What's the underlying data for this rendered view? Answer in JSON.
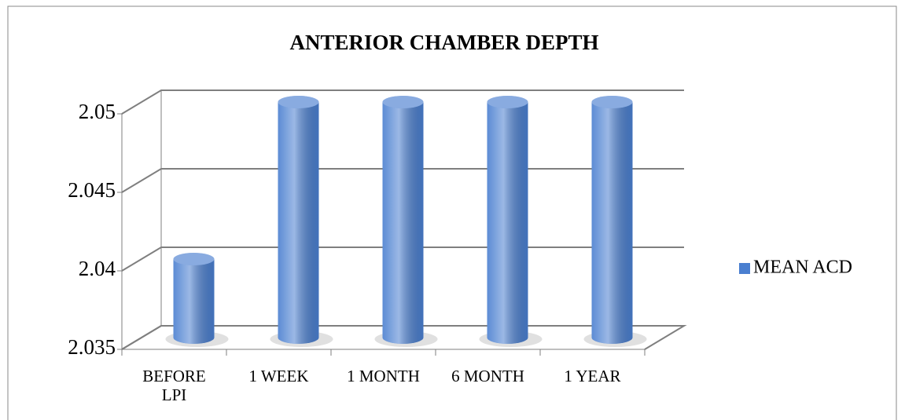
{
  "chart_data": {
    "type": "bar",
    "title": "ANTERIOR CHAMBER DEPTH",
    "categories": [
      "BEFORE LPI",
      "1 WEEK",
      "1 MONTH",
      "6 MONTH",
      "1 YEAR"
    ],
    "series": [
      {
        "name": "MEAN ACD",
        "color": "#4a7fd0",
        "values": [
          2.04,
          2.05,
          2.05,
          2.05,
          2.05
        ]
      }
    ],
    "ylim": [
      2.035,
      2.05
    ],
    "yticks": [
      2.035,
      2.04,
      2.045,
      2.05
    ],
    "grid": true,
    "legend": "right"
  }
}
